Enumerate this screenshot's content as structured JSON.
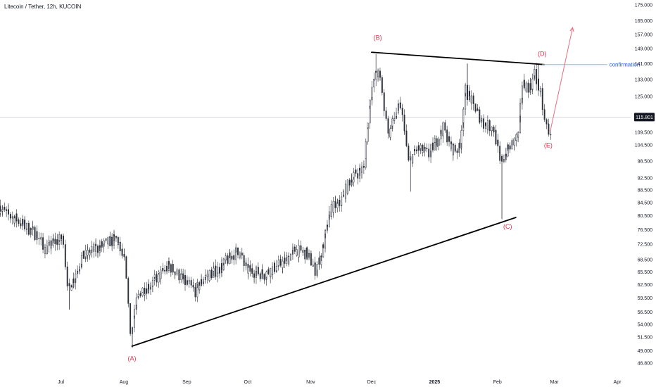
{
  "header": {
    "title": "Litecoin / Tether, 12h, KUCOIN"
  },
  "chart_data": {
    "type": "candlestick",
    "symbol": "Litecoin / Tether",
    "interval": "12h",
    "exchange": "KUCOIN",
    "y_scale": "log",
    "ylim": [
      45.5,
      178
    ],
    "yticks": [
      "175.000",
      "165.000",
      "157.000",
      "149.000",
      "141.000",
      "133.000",
      "125.000",
      "115.801",
      "109.500",
      "104.500",
      "98.500",
      "92.500",
      "88.500",
      "84.500",
      "80.500",
      "76.500",
      "72.500",
      "68.500",
      "65.500",
      "62.500",
      "59.500",
      "56.500",
      "54.000",
      "51.500",
      "49.000",
      "46.800"
    ],
    "current_price": "115.801",
    "x_labels": [
      "Jul",
      "Aug",
      "Sep",
      "Oct",
      "Nov",
      "Dec",
      "2025",
      "Feb",
      "Mar",
      "Apr"
    ],
    "price_path": [
      [
        "2024-06-01",
        83.5
      ],
      [
        "2024-06-05",
        81
      ],
      [
        "2024-06-10",
        79.5
      ],
      [
        "2024-06-15",
        77
      ],
      [
        "2024-06-20",
        75
      ],
      [
        "2024-06-24",
        71
      ],
      [
        "2024-06-28",
        73
      ],
      [
        "2024-07-03",
        74
      ],
      [
        "2024-07-05",
        61
      ],
      [
        "2024-07-08",
        64
      ],
      [
        "2024-07-12",
        69
      ],
      [
        "2024-07-18",
        71
      ],
      [
        "2024-07-25",
        73
      ],
      [
        "2024-07-29",
        74
      ],
      [
        "2024-08-02",
        68
      ],
      [
        "2024-08-05",
        52
      ],
      [
        "2024-08-07",
        57
      ],
      [
        "2024-08-10",
        61
      ],
      [
        "2024-08-16",
        63
      ],
      [
        "2024-08-24",
        67
      ],
      [
        "2024-09-01",
        63
      ],
      [
        "2024-09-06",
        61
      ],
      [
        "2024-09-10",
        64
      ],
      [
        "2024-09-17",
        66
      ],
      [
        "2024-09-27",
        71
      ],
      [
        "2024-10-01",
        66
      ],
      [
        "2024-10-10",
        65
      ],
      [
        "2024-10-20",
        68
      ],
      [
        "2024-10-25",
        71
      ],
      [
        "2024-10-31",
        70
      ],
      [
        "2024-11-04",
        66
      ],
      [
        "2024-11-07",
        70
      ],
      [
        "2024-11-12",
        83
      ],
      [
        "2024-11-16",
        84
      ],
      [
        "2024-11-22",
        93
      ],
      [
        "2024-11-28",
        96
      ],
      [
        "2024-12-01",
        125
      ],
      [
        "2024-12-04",
        137
      ],
      [
        "2024-12-06",
        133
      ],
      [
        "2024-12-10",
        108
      ],
      [
        "2024-12-14",
        118
      ],
      [
        "2024-12-16",
        121
      ],
      [
        "2024-12-20",
        98
      ],
      [
        "2024-12-24",
        103
      ],
      [
        "2024-12-30",
        101
      ],
      [
        "2025-01-06",
        111
      ],
      [
        "2025-01-10",
        103
      ],
      [
        "2025-01-14",
        103
      ],
      [
        "2025-01-17",
        128
      ],
      [
        "2025-01-22",
        119
      ],
      [
        "2025-01-26",
        113
      ],
      [
        "2025-01-31",
        111
      ],
      [
        "2025-02-03",
        98
      ],
      [
        "2025-02-07",
        103
      ],
      [
        "2025-02-12",
        108
      ],
      [
        "2025-02-14",
        131
      ],
      [
        "2025-02-18",
        129
      ],
      [
        "2025-02-20",
        136
      ],
      [
        "2025-02-23",
        126
      ],
      [
        "2025-02-25",
        114
      ],
      [
        "2025-02-27",
        110
      ]
    ],
    "extreme_wicks": [
      [
        "2024-07-05",
        57
      ],
      [
        "2024-08-05",
        49.5
      ],
      [
        "2024-12-03",
        146
      ],
      [
        "2024-12-20",
        88
      ],
      [
        "2025-01-17",
        141
      ],
      [
        "2025-02-03",
        79.5
      ],
      [
        "2025-02-21",
        141
      ]
    ],
    "trendlines": [
      {
        "from": [
          "2024-12-01",
          147
        ],
        "to": [
          "2025-02-24",
          140.5
        ]
      },
      {
        "from": [
          "2024-08-05",
          49.8
        ],
        "to": [
          "2025-02-10",
          80
        ]
      }
    ],
    "confirmation_line": {
      "from": [
        "2025-02-23",
        140.5
      ],
      "to": [
        "2025-03-27",
        140.5
      ],
      "label": "confirmation"
    },
    "projection_arrow": {
      "from": [
        "2025-02-27",
        110
      ],
      "to": [
        "2025-03-10",
        161
      ]
    },
    "wave_labels": [
      {
        "text": "(A)",
        "date": "2024-08-05",
        "price": 47.2
      },
      {
        "text": "(B)",
        "date": "2024-12-04",
        "price": 154
      },
      {
        "text": "(C)",
        "date": "2025-02-06",
        "price": 76.8
      },
      {
        "text": "(D)",
        "date": "2025-02-23",
        "price": 145
      },
      {
        "text": "(E)",
        "date": "2025-02-26",
        "price": 103.5
      }
    ],
    "grid": false
  }
}
